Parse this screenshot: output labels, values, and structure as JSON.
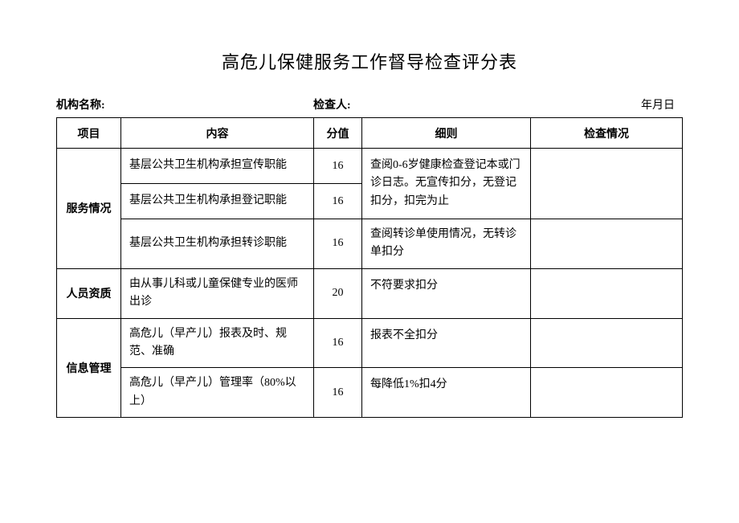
{
  "title": "高危儿保健服务工作督导检查评分表",
  "header": {
    "org_label": "机构名称:",
    "inspector_label": "检查人:",
    "date_label": "年月日"
  },
  "columns": {
    "project": "项目",
    "content": "内容",
    "score": "分值",
    "detail": "细则",
    "check": "检查情况"
  },
  "group1": {
    "name": "服务情况",
    "r1_content": "基层公共卫生机构承担宣传职能",
    "r1_score": "16",
    "r2_content": "基层公共卫生机构承担登记职能",
    "r2_score": "16",
    "detail12": "查阅0-6岁健康检查登记本或门诊日志。无宣传扣分，无登记扣分，扣完为止",
    "r3_content": "基层公共卫生机构承担转诊职能",
    "r3_score": "16",
    "r3_detail": "查阅转诊单使用情况，无转诊单扣分"
  },
  "group2": {
    "name": "人员资质",
    "r1_content": "由从事儿科或儿童保健专业的医师出诊",
    "r1_score": "20",
    "r1_detail": "不符要求扣分"
  },
  "group3": {
    "name": "信息管理",
    "r1_content": "高危儿（早产儿）报表及时、规范、准确",
    "r1_score": "16",
    "r1_detail": "报表不全扣分",
    "r2_content": "高危儿（早产儿）管理率（80%以上）",
    "r2_score": "16",
    "r2_detail": "每降低1%扣4分"
  }
}
